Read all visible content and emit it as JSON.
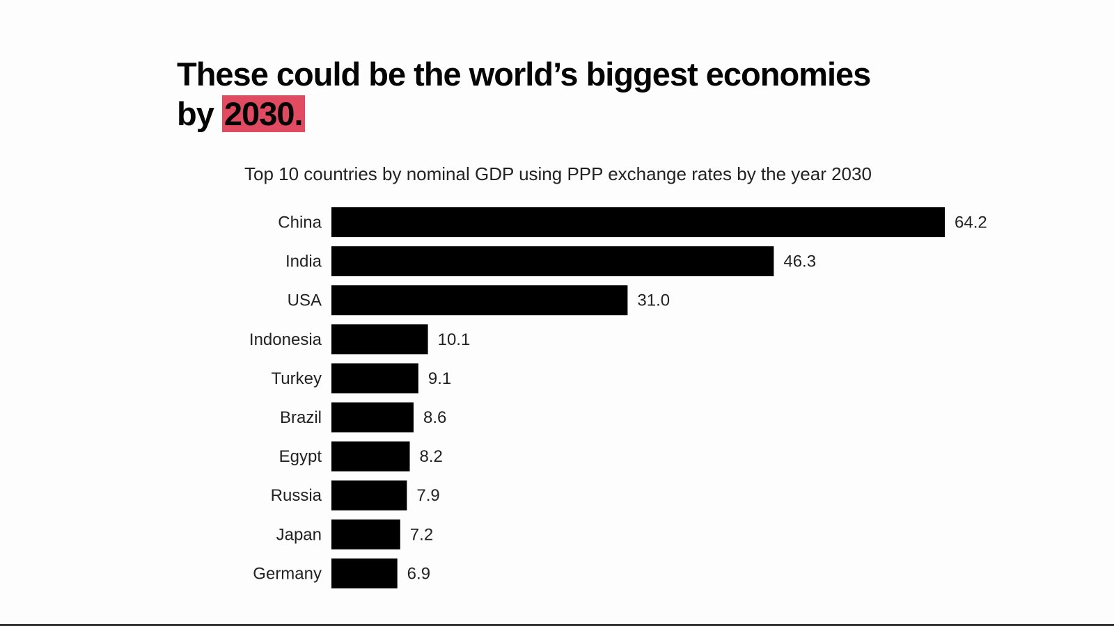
{
  "header": {
    "title_line1": "These could be the world’s biggest economies",
    "title_prefix": "by",
    "title_highlight": "2030."
  },
  "colors": {
    "highlight": "#e14b61",
    "bar": "#000000",
    "background": "#fdfdfd"
  },
  "chart_data": {
    "type": "bar",
    "orientation": "horizontal",
    "title": "Top 10 countries by nominal GDP using PPP exchange rates by the year 2030",
    "categories": [
      "China",
      "India",
      "USA",
      "Indonesia",
      "Turkey",
      "Brazil",
      "Egypt",
      "Russia",
      "Japan",
      "Germany"
    ],
    "values": [
      64.2,
      46.3,
      31.0,
      10.1,
      9.1,
      8.6,
      8.2,
      7.9,
      7.2,
      6.9
    ],
    "value_labels": [
      "64.2",
      "46.3",
      "31.0",
      "10.1",
      "9.1",
      "8.6",
      "8.2",
      "7.9",
      "7.2",
      "6.9"
    ],
    "xlabel": "",
    "ylabel": "",
    "xlim": [
      0,
      64.2
    ],
    "grid": false,
    "legend": "none"
  }
}
